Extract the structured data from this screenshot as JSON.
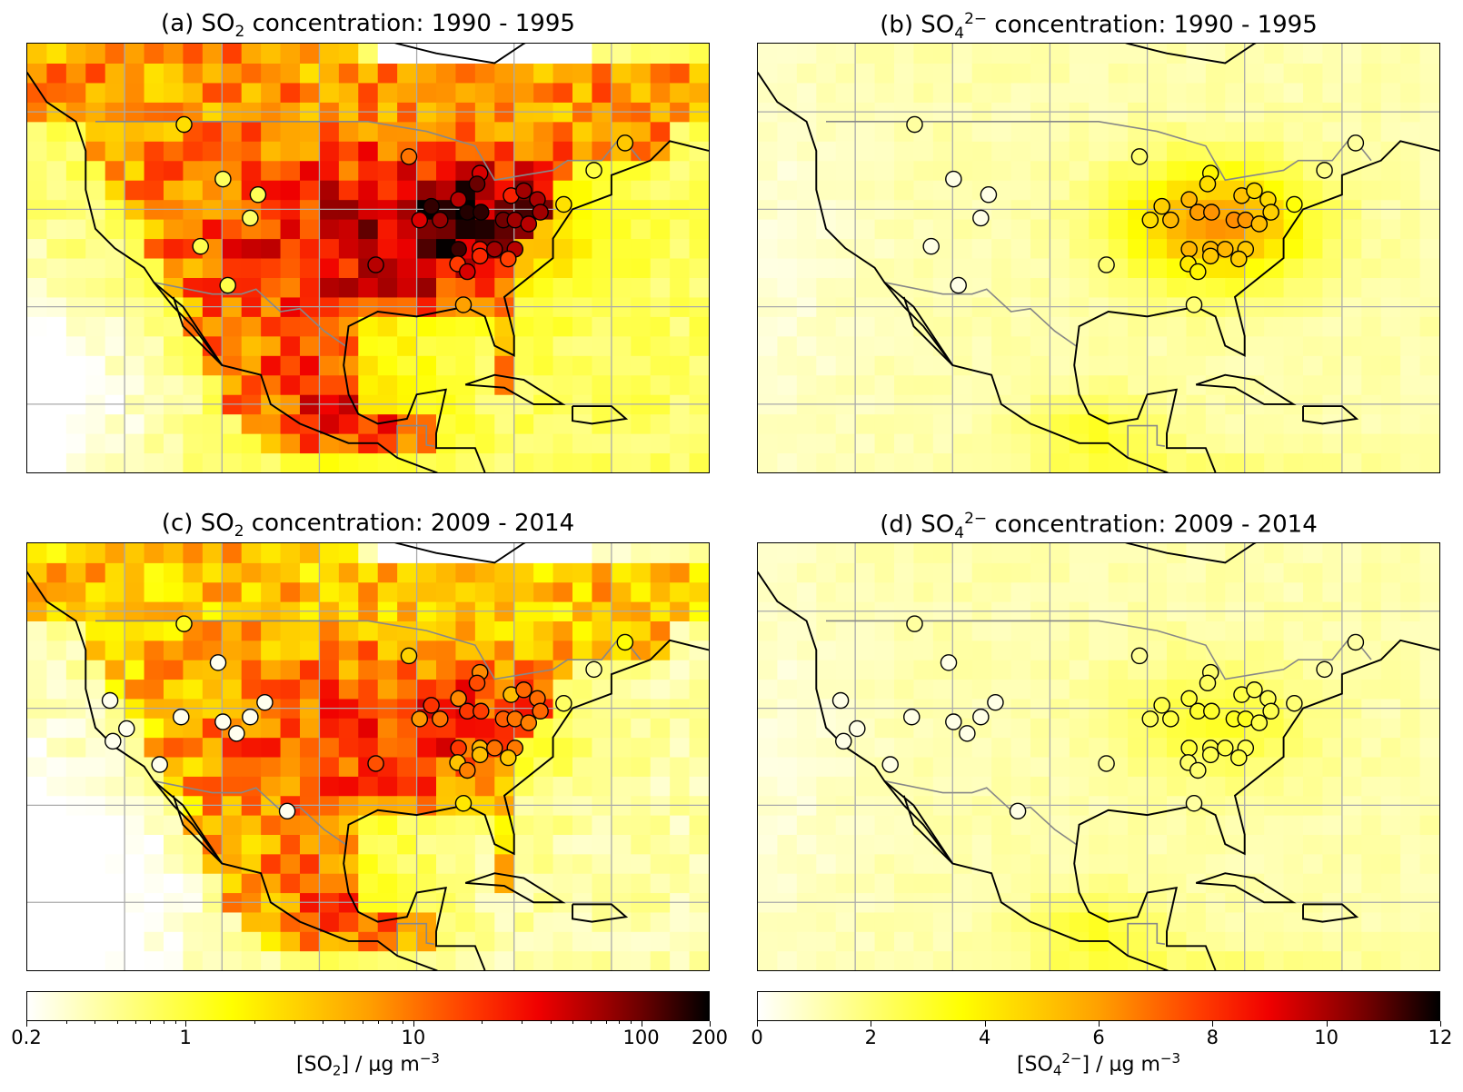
{
  "panels": [
    {
      "id": "a",
      "title": {
        "prefix": "(a) SO",
        "sub": "2",
        "sup": "",
        "suffix": " concentration: 1990 - 1995"
      },
      "species": "SO2",
      "period": "1990-1995"
    },
    {
      "id": "b",
      "title": {
        "prefix": "(b) SO",
        "sub": "4",
        "sup": "2−",
        "suffix": " concentration: 1990 - 1995"
      },
      "species": "SO4",
      "period": "1990-1995"
    },
    {
      "id": "c",
      "title": {
        "prefix": "(c) SO",
        "sub": "2",
        "sup": "",
        "suffix": " concentration: 2009 - 2014"
      },
      "species": "SO2",
      "period": "2009-2014"
    },
    {
      "id": "d",
      "title": {
        "prefix": "(d) SO",
        "sub": "4",
        "sup": "2−",
        "suffix": " concentration: 2009 - 2014"
      },
      "species": "SO4",
      "period": "2009-2014"
    }
  ],
  "colorbars": {
    "so2": {
      "scale": "log",
      "range": [
        0.2,
        200
      ],
      "ticks": [
        "0.2",
        "1",
        "10",
        "100",
        "200"
      ],
      "tick_values": [
        0.2,
        1,
        10,
        100,
        200
      ],
      "label": {
        "prefix": "[SO",
        "sub": "2",
        "sup": "",
        "suffix": "] / μg m",
        "unit_sup": "−3"
      }
    },
    "so4": {
      "scale": "linear",
      "range": [
        0,
        12
      ],
      "ticks": [
        "0",
        "2",
        "4",
        "6",
        "8",
        "10",
        "12"
      ],
      "tick_values": [
        0,
        2,
        4,
        6,
        8,
        10,
        12
      ],
      "label": {
        "prefix": "[SO",
        "sub": "4",
        "sup": "2−",
        "suffix": "] / μg m",
        "unit_sup": "−3"
      }
    }
  },
  "chart_data": {
    "type": "heatmap",
    "map_extent": {
      "lon": [
        -130,
        -60
      ],
      "lat": [
        13,
        57
      ]
    },
    "gridlines": {
      "lon": [
        -120,
        -110,
        -100,
        -90,
        -80,
        -70
      ],
      "lat": [
        20,
        30,
        40,
        50
      ]
    },
    "colormap": "hot_r",
    "stations_east": [
      [
        -113.9,
        48.7
      ],
      [
        -90.8,
        45.4
      ],
      [
        -83.5,
        43.7
      ],
      [
        -71.8,
        44.0
      ],
      [
        -68.6,
        46.8
      ],
      [
        -88.5,
        40.3
      ],
      [
        -89.7,
        38.9
      ],
      [
        -87.6,
        38.9
      ],
      [
        -85.7,
        41.0
      ],
      [
        -83.8,
        42.6
      ],
      [
        -84.8,
        39.7
      ],
      [
        -83.4,
        39.7
      ],
      [
        -80.3,
        41.4
      ],
      [
        -79.0,
        41.9
      ],
      [
        -77.6,
        41.0
      ],
      [
        -74.9,
        40.5
      ],
      [
        -81.1,
        38.9
      ],
      [
        -79.9,
        38.9
      ],
      [
        -78.5,
        38.5
      ],
      [
        -77.3,
        39.7
      ],
      [
        -85.7,
        35.9
      ],
      [
        -83.5,
        35.9
      ],
      [
        -82.0,
        35.9
      ],
      [
        -79.9,
        35.9
      ],
      [
        -85.8,
        34.4
      ],
      [
        -83.5,
        35.2
      ],
      [
        -84.8,
        33.6
      ],
      [
        -80.6,
        34.9
      ],
      [
        -94.2,
        34.3
      ],
      [
        -85.2,
        30.2
      ]
    ],
    "stations_west_all": [
      [
        -109.9,
        43.1
      ],
      [
        -106.3,
        41.5
      ],
      [
        -107.1,
        39.1
      ],
      [
        -112.2,
        36.2
      ],
      [
        -109.4,
        32.2
      ]
    ],
    "stations_west_late": [
      [
        -121.5,
        40.8
      ],
      [
        -121.2,
        36.6
      ],
      [
        -119.8,
        37.9
      ],
      [
        -116.4,
        34.2
      ],
      [
        -114.2,
        39.1
      ],
      [
        -110.4,
        44.7
      ],
      [
        -109.9,
        38.6
      ],
      [
        -108.5,
        37.4
      ],
      [
        -107.1,
        39.1
      ],
      [
        -105.6,
        40.6
      ],
      [
        -103.3,
        29.4
      ]
    ]
  }
}
